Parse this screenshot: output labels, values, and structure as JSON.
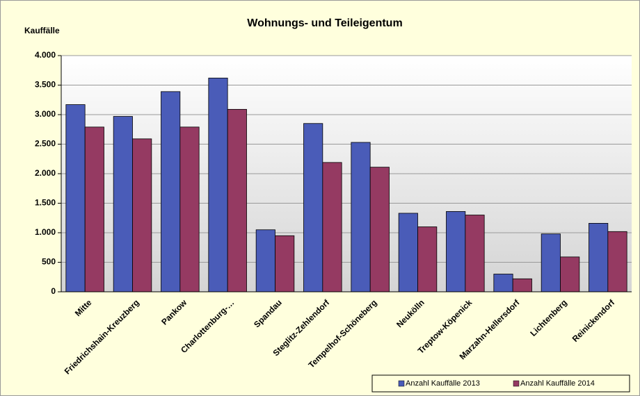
{
  "chart_data": {
    "type": "bar",
    "title": "Wohnungs- und Teileigentum",
    "y_label": "Kauffälle",
    "categories": [
      "Mitte",
      "Friedrichshain-Kreuzberg",
      "Pankow",
      "Charlottenburg-…",
      "Spandau",
      "Steglitz-Zehlendorf",
      "Tempelhof-Schöneberg",
      "Neukölln",
      "Treptow-Köpenick",
      "Marzahn-Hellersdorf",
      "Lichtenberg",
      "Reinickendorf"
    ],
    "series": [
      {
        "name": "Anzahl Kauffälle 2013",
        "color": "#4a5cb8",
        "values": [
          3170,
          2970,
          3390,
          3620,
          1050,
          2850,
          2530,
          1330,
          1360,
          300,
          980,
          1160
        ]
      },
      {
        "name": "Anzahl Kauffälle 2014",
        "color": "#953a62",
        "values": [
          2790,
          2590,
          2790,
          3090,
          950,
          2190,
          2110,
          1100,
          1300,
          220,
          590,
          1020
        ]
      }
    ],
    "ylim": [
      0,
      4000
    ],
    "yticks": [
      0,
      500,
      {
        "value": 1000,
        "label": "1.000"
      },
      {
        "value": 1500,
        "label": "1.500"
      },
      {
        "value": 2000,
        "label": "2.000"
      },
      {
        "value": 2500,
        "label": "2.500"
      },
      {
        "value": 3000,
        "label": "3.000"
      },
      {
        "value": 3500,
        "label": "3.500"
      },
      {
        "value": 4000,
        "label": "4.000"
      }
    ],
    "grid": true,
    "legend": "bottom-right"
  }
}
